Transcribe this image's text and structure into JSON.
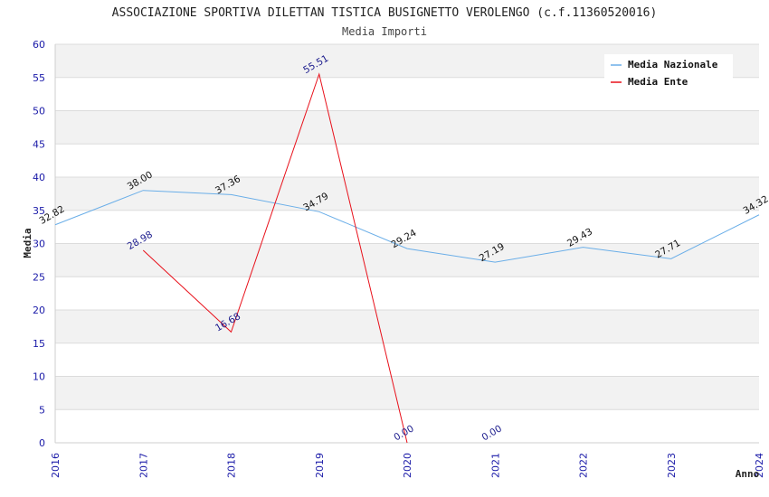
{
  "chart_data": {
    "type": "line",
    "title": "ASSOCIAZIONE SPORTIVA DILETTAN TISTICA BUSIGNETTO VEROLENGO (c.f.11360520016)",
    "subtitle": "Media Importi",
    "xlabel": "Anno",
    "ylabel": "Media",
    "categories": [
      "2016",
      "2017",
      "2018",
      "2019",
      "2020",
      "2021",
      "2022",
      "2023",
      "2024"
    ],
    "ylim": [
      0,
      60
    ],
    "yticks": [
      0,
      5,
      10,
      15,
      20,
      25,
      30,
      35,
      40,
      45,
      50,
      55,
      60
    ],
    "grid": "horizontal alternating bands",
    "legend_position": "top-right",
    "series": [
      {
        "name": "Media Nazionale",
        "color": "#6aaee8",
        "label_color": "#111111",
        "values": [
          32.82,
          38.0,
          37.36,
          34.79,
          29.24,
          27.19,
          29.43,
          27.71,
          34.32
        ],
        "labels": [
          "32.82",
          "38.00",
          "37.36",
          "34.79",
          "29.24",
          "27.19",
          "29.43",
          "27.71",
          "34.32"
        ]
      },
      {
        "name": "Media Ente",
        "color": "#e8101a",
        "label_color": "#1a1a8c",
        "values": [
          null,
          28.98,
          16.68,
          55.51,
          0.0,
          0.0,
          null,
          null,
          null
        ],
        "labels": [
          null,
          "28.98",
          "16.68",
          "55.51",
          "0.00",
          "0.00",
          null,
          null,
          null
        ],
        "line_breaks_after_index": 4
      }
    ]
  }
}
